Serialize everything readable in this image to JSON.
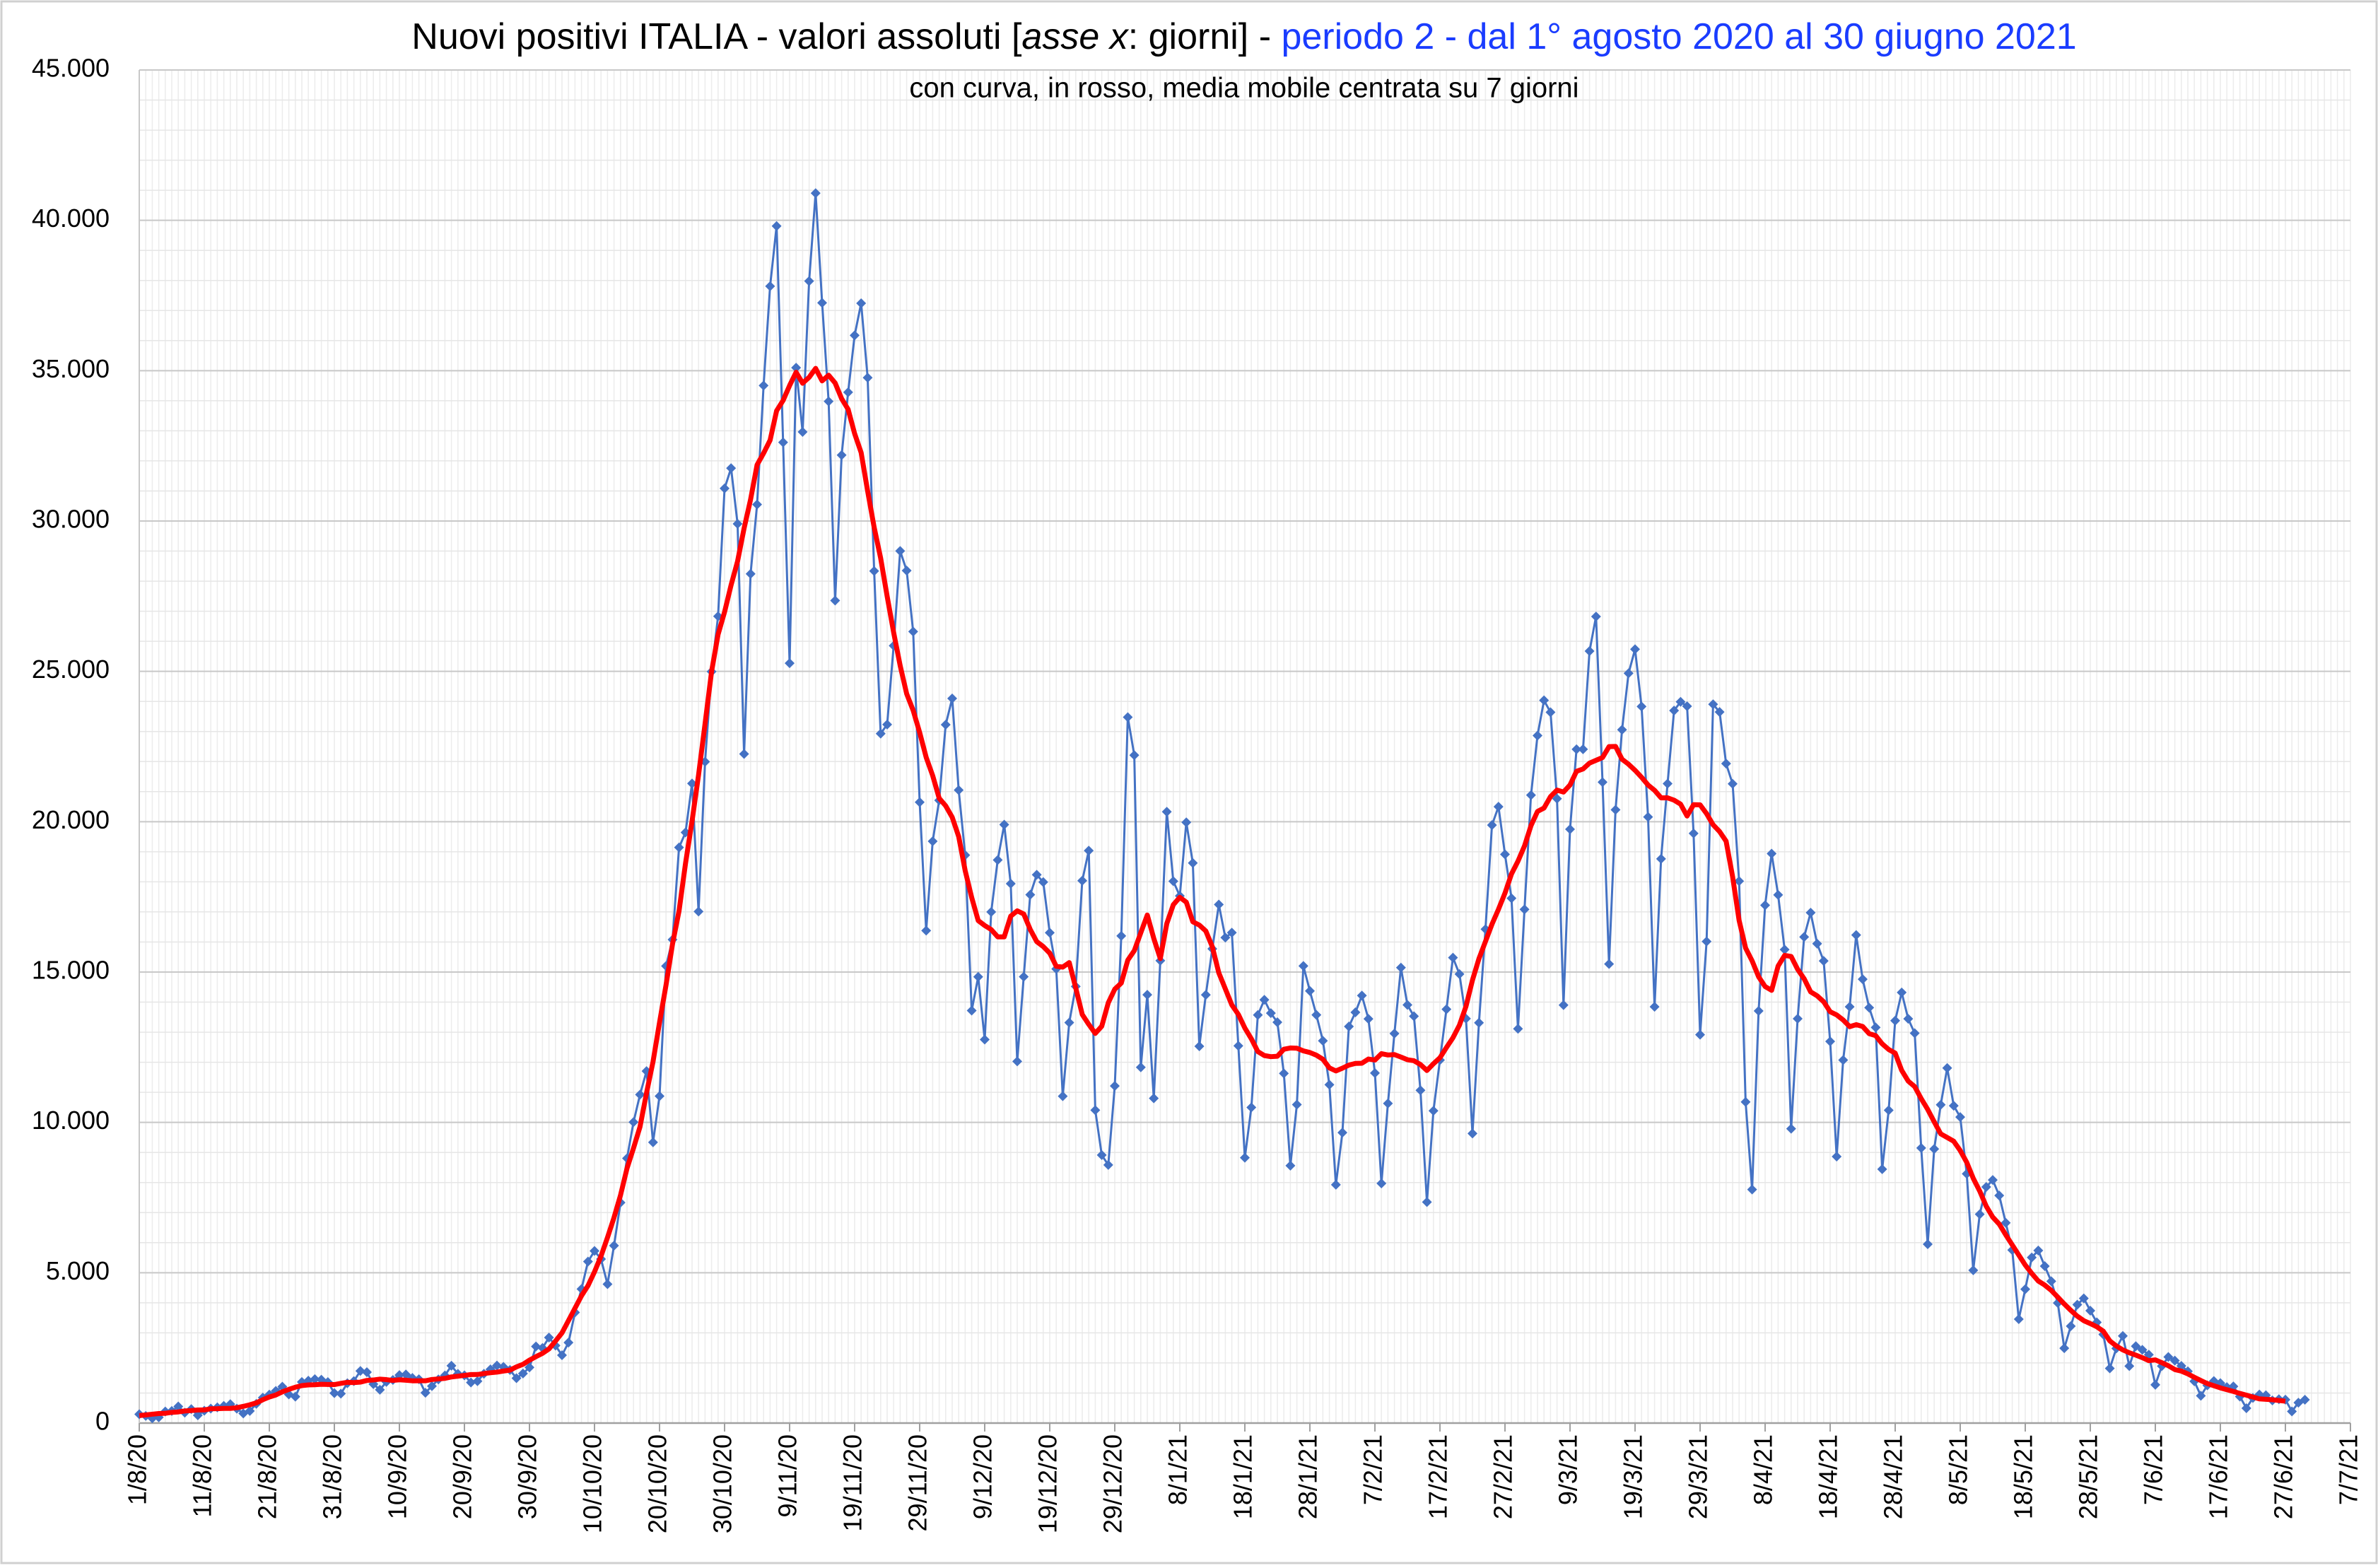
{
  "chart_data": {
    "type": "line",
    "title": [
      "Nuovi positivi ITALIA - valori assoluti [",
      "asse x",
      ": giorni] - ",
      "periodo 2 - dal 1° agosto 2020 al 30 giugno 2021"
    ],
    "subtitle": "con curva, in rosso, media mobile centrata su 7 giorni",
    "ylim": [
      0,
      45000
    ],
    "yticks": [
      0,
      {
        "value": 5000,
        "label": "5.000"
      },
      {
        "value": 10000,
        "label": "10.000"
      },
      {
        "value": 15000,
        "label": "15.000"
      },
      {
        "value": 20000,
        "label": "20.000"
      },
      {
        "value": 25000,
        "label": "25.000"
      },
      {
        "value": 30000,
        "label": "30.000"
      },
      {
        "value": 35000,
        "label": "35.000"
      },
      {
        "value": 40000,
        "label": "40.000"
      },
      {
        "value": 45000,
        "label": "45.000"
      }
    ],
    "grid": true,
    "categories": [
      "1/8/20",
      null,
      null,
      null,
      null,
      null,
      null,
      null,
      null,
      null,
      "11/8/20",
      null,
      null,
      null,
      null,
      null,
      null,
      null,
      null,
      null,
      "21/8/20",
      null,
      null,
      null,
      null,
      null,
      null,
      null,
      null,
      null,
      "31/8/20",
      null,
      null,
      null,
      null,
      null,
      null,
      null,
      null,
      null,
      "10/9/20",
      null,
      null,
      null,
      null,
      null,
      null,
      null,
      null,
      null,
      "20/9/20",
      null,
      null,
      null,
      null,
      null,
      null,
      null,
      null,
      null,
      "30/9/20",
      null,
      null,
      null,
      null,
      null,
      null,
      null,
      null,
      null,
      "10/10/20",
      null,
      null,
      null,
      null,
      null,
      null,
      null,
      null,
      null,
      "20/10/20",
      null,
      null,
      null,
      null,
      null,
      null,
      null,
      null,
      null,
      "30/10/20",
      null,
      null,
      null,
      null,
      null,
      null,
      null,
      null,
      null,
      "9/11/20",
      null,
      null,
      null,
      null,
      null,
      null,
      null,
      null,
      null,
      "19/11/20",
      null,
      null,
      null,
      null,
      null,
      null,
      null,
      null,
      null,
      "29/11/20",
      null,
      null,
      null,
      null,
      null,
      null,
      null,
      null,
      null,
      "9/12/20",
      null,
      null,
      null,
      null,
      null,
      null,
      null,
      null,
      null,
      "19/12/20",
      null,
      null,
      null,
      null,
      null,
      null,
      null,
      null,
      null,
      "29/12/20",
      null,
      null,
      null,
      null,
      null,
      null,
      null,
      null,
      null,
      "8/1/21",
      null,
      null,
      null,
      null,
      null,
      null,
      null,
      null,
      null,
      "18/1/21",
      null,
      null,
      null,
      null,
      null,
      null,
      null,
      null,
      null,
      "28/1/21",
      null,
      null,
      null,
      null,
      null,
      null,
      null,
      null,
      null,
      "7/2/21",
      null,
      null,
      null,
      null,
      null,
      null,
      null,
      null,
      null,
      "17/2/21",
      null,
      null,
      null,
      null,
      null,
      null,
      null,
      null,
      null,
      "27/2/21",
      null,
      null,
      null,
      null,
      null,
      null,
      null,
      null,
      null,
      "9/3/21",
      null,
      null,
      null,
      null,
      null,
      null,
      null,
      null,
      null,
      "19/3/21",
      null,
      null,
      null,
      null,
      null,
      null,
      null,
      null,
      null,
      "29/3/21",
      null,
      null,
      null,
      null,
      null,
      null,
      null,
      null,
      null,
      "8/4/21",
      null,
      null,
      null,
      null,
      null,
      null,
      null,
      null,
      null,
      "18/4/21",
      null,
      null,
      null,
      null,
      null,
      null,
      null,
      null,
      null,
      "28/4/21",
      null,
      null,
      null,
      null,
      null,
      null,
      null,
      null,
      null,
      "8/5/21",
      null,
      null,
      null,
      null,
      null,
      null,
      null,
      null,
      null,
      "18/5/21",
      null,
      null,
      null,
      null,
      null,
      null,
      null,
      null,
      null,
      "28/5/21",
      null,
      null,
      null,
      null,
      null,
      null,
      null,
      null,
      null,
      "7/6/21",
      null,
      null,
      null,
      null,
      null,
      null,
      null,
      null,
      null,
      "17/6/21",
      null,
      null,
      null,
      null,
      null,
      null,
      null,
      null,
      null,
      "27/6/21",
      null,
      null,
      null,
      null,
      null,
      null,
      null,
      null,
      null,
      "7/7/21"
    ],
    "series": [
      {
        "color": "#4472c4",
        "marker": "diamond",
        "values": [
          295,
          239,
          159,
          190,
          384,
          402,
          552,
          347,
          463,
          259,
          412,
          481,
          523,
          574,
          629,
          479,
          320,
          403,
          642,
          845,
          947,
          1071,
          1210,
          953,
          878,
          1367,
          1411,
          1462,
          1444,
          1365,
          996,
          978,
          1326,
          1397,
          1733,
          1694,
          1297,
          1108,
          1370,
          1434,
          1597,
          1616,
          1501,
          1458,
          1008,
          1229,
          1452,
          1585,
          1907,
          1638,
          1587,
          1350,
          1392,
          1640,
          1786,
          1912,
          1869,
          1766,
          1494,
          1648,
          1851,
          2548,
          2499,
          2844,
          2578,
          2257,
          2677,
          3678,
          4458,
          5372,
          5724,
          5456,
          4619,
          5901,
          7332,
          8804,
          10010,
          10925,
          11705,
          9338,
          10874,
          15199,
          16079,
          19143,
          19644,
          21273,
          17012,
          21994,
          24991,
          26831,
          31084,
          31758,
          29907,
          22253,
          28244,
          30550,
          34505,
          37809,
          39811,
          32616,
          25271,
          35098,
          32961,
          37978,
          40902,
          37255,
          33979,
          27354,
          32191,
          34283,
          36176,
          37242,
          34767,
          28337,
          22930,
          23232,
          25853,
          29003,
          28352,
          26323,
          20648,
          16377,
          19350,
          20709,
          23225,
          24099,
          21052,
          18887,
          13720,
          14842,
          12756,
          16999,
          18727,
          19903,
          17938,
          12030,
          14844,
          17572,
          18236,
          17992,
          16308,
          15104,
          10872,
          13318,
          14522,
          18040,
          19037,
          10407,
          8913,
          8585,
          11212,
          16202,
          23477,
          22211,
          11831,
          14245,
          10800,
          15378,
          20331,
          18020,
          17533,
          19978,
          18627,
          12532,
          14242,
          15774,
          17246,
          16146,
          16310,
          12545,
          8824,
          10497,
          13571,
          14078,
          13633,
          13331,
          11629,
          8561,
          10593,
          15204,
          14372,
          13574,
          12715,
          11252,
          7925,
          9660,
          13189,
          13659,
          14218,
          13442,
          11641,
          7970,
          10630,
          12956,
          15146,
          13908,
          13532,
          11068,
          7351,
          10386,
          12074,
          13762,
          15479,
          14931,
          13452,
          9630,
          13314,
          16424,
          19886,
          20499,
          18916,
          17455,
          13114,
          17083,
          20884,
          22865,
          24036,
          23641,
          20765,
          13902,
          19749,
          22409,
          22409,
          25673,
          26824,
          21315,
          15267,
          20396,
          23059,
          24935,
          25735,
          23832,
          20159,
          13846,
          18765,
          21267,
          23696,
          23987,
          23839,
          19611,
          12916,
          16017,
          23904,
          23649,
          21932,
          21261,
          18025,
          10680,
          7767,
          13708,
          17221,
          18938,
          17567,
          15746,
          9789,
          13447,
          16168,
          16974,
          15943,
          15370,
          12694,
          8864,
          12074,
          13844,
          16232,
          14761,
          13817,
          13158,
          8444,
          10404,
          13385,
          14320,
          13446,
          12965,
          9148,
          5948,
          9116,
          10585,
          11807,
          10554,
          10176,
          8292,
          5080,
          6946,
          7852,
          8085,
          7567,
          6659,
          5753,
          3455,
          4452,
          5506,
          5741,
          5218,
          4717,
          3995,
          2490,
          3224,
          3937,
          4147,
          3738,
          3351,
          2949,
          1820,
          2483,
          2897,
          1896,
          2557,
          2436,
          2275,
          1273,
          1896,
          2199,
          2079,
          1901,
          1723,
          1390,
          907,
          1255,
          1400,
          1327,
          1197,
          1221,
          881,
          495,
          835,
          948,
          927,
          753,
          794,
          778,
          389,
          679,
          776,
          null,
          null,
          null,
          null,
          null,
          null,
          null
        ]
      },
      {
        "color": "#ff0000",
        "marker": "none",
        "values": [
          250,
          270,
          295,
          317,
          325,
          357,
          371,
          403,
          417,
          434,
          437,
          477,
          480,
          488,
          487,
          510,
          556,
          609,
          672,
          777,
          867,
          935,
          1039,
          1120,
          1193,
          1246,
          1269,
          1275,
          1289,
          1283,
          1281,
          1320,
          1356,
          1346,
          1362,
          1418,
          1433,
          1462,
          1445,
          1418,
          1441,
          1426,
          1406,
          1409,
          1407,
          1449,
          1468,
          1487,
          1535,
          1559,
          1586,
          1614,
          1615,
          1648,
          1674,
          1694,
          1731,
          1761,
          1870,
          1954,
          2093,
          2209,
          2318,
          2465,
          2726,
          2999,
          3409,
          3821,
          4232,
          4569,
          5030,
          5552,
          6173,
          6835,
          7578,
          8471,
          9145,
          9855,
          10979,
          12019,
          13323,
          14569,
          15936,
          17032,
          18621,
          20019,
          21555,
          23261,
          24992,
          26225,
          26974,
          27867,
          28661,
          29757,
          30718,
          31868,
          32255,
          32687,
          33666,
          34010,
          34506,
          34948,
          34583,
          34778,
          35075,
          34660,
          34849,
          34591,
          34069,
          33713,
          32907,
          32275,
          30995,
          29791,
          28766,
          27496,
          26290,
          25192,
          24255,
          23701,
          22966,
          22141,
          21533,
          20780,
          20528,
          20149,
          19505,
          18369,
          17479,
          16712,
          16548,
          16412,
          16171,
          16171,
          16859,
          17036,
          16931,
          16417,
          16012,
          15847,
          15629,
          15193,
          15165,
          15314,
          14471,
          13587,
          13260,
          12959,
          13199,
          13976,
          14430,
          14633,
          15395,
          15711,
          16306,
          16896,
          16117,
          15448,
          16612,
          17238,
          17486,
          17323,
          16672,
          16562,
          16364,
          15840,
          14971,
          14441,
          13906,
          13591,
          13139,
          12780,
          12354,
          12223,
          12186,
          12199,
          12433,
          12475,
          12466,
          12378,
          12324,
          12234,
          12100,
          11812,
          11711,
          11803,
          11906,
          11962,
          11968,
          12107,
          12074,
          12286,
          12242,
          12255,
          12173,
          12084,
          12050,
          11924,
          11726,
          11950,
          12150,
          12491,
          12816,
          13235,
          13856,
          14731,
          15448,
          16017,
          16589,
          17087,
          17625,
          18262,
          18688,
          19193,
          19868,
          20341,
          20454,
          20835,
          21052,
          20987,
          21221,
          21676,
          21754,
          21949,
          22042,
          22135,
          22496,
          22504,
          22077,
          21912,
          21709,
          21476,
          21220,
          21043,
          20793,
          20794,
          20716,
          20583,
          20190,
          20567,
          20560,
          20267,
          19899,
          19672,
          19353,
          18174,
          16717,
          15799,
          15371,
          14844,
          14518,
          14391,
          15202,
          15554,
          15518,
          15091,
          14777,
          14341,
          14209,
          14012,
          13680,
          13574,
          13406,
          13184,
          13250,
          13190,
          12951,
          12886,
          12613,
          12425,
          12303,
          11730,
          11374,
          11190,
          10790,
          10431,
          10018,
          9619,
          9497,
          9373,
          9063,
          8672,
          8141,
          7714,
          7212,
          6849,
          6617,
          6260,
          5925,
          5590,
          5255,
          4977,
          4726,
          4588,
          4413,
          4189,
          3961,
          3750,
          3555,
          3405,
          3309,
          3204,
          3055,
          2733,
          2565,
          2434,
          2338,
          2260,
          2176,
          2076,
          2102,
          2008,
          1907,
          1780,
          1728,
          1636,
          1522,
          1415,
          1314,
          1242,
          1170,
          1111,
          1051,
          986,
          929,
          866,
          805,
          790,
          775,
          753,
          728,
          null,
          null,
          null,
          null,
          null,
          null,
          null,
          null,
          null,
          null
        ]
      }
    ]
  }
}
